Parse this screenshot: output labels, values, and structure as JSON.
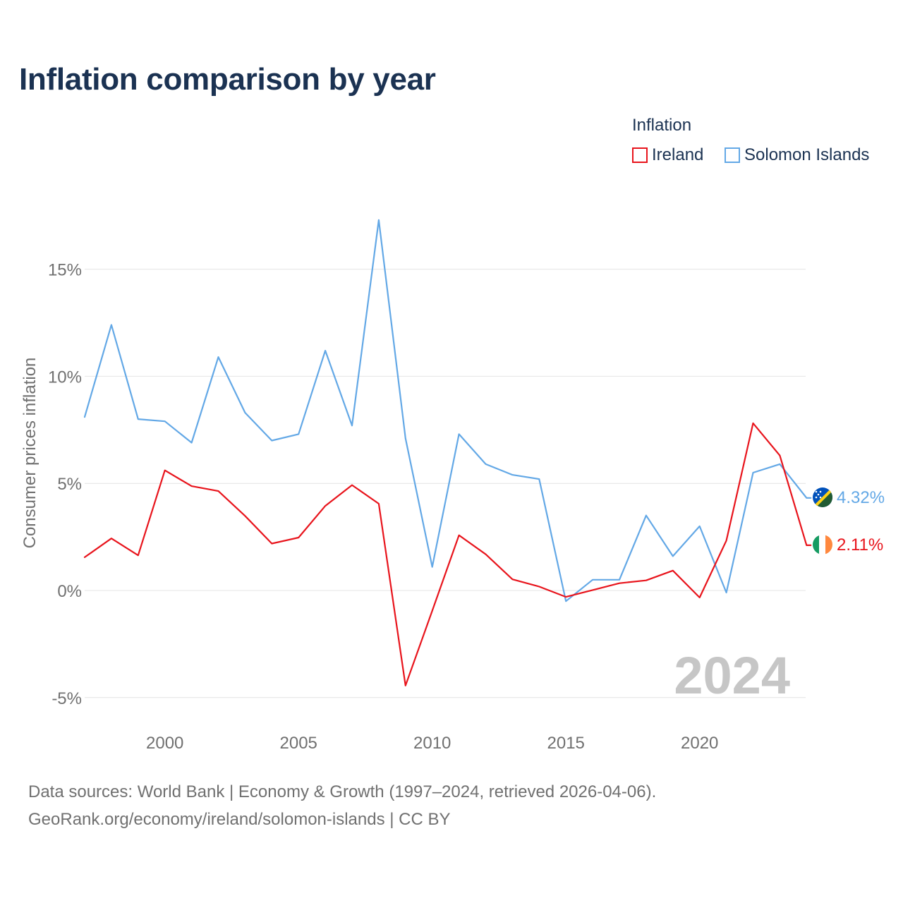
{
  "title": "Inflation comparison by year",
  "legend": {
    "title": "Inflation",
    "items": [
      {
        "label": "Ireland",
        "color": "#e8141c"
      },
      {
        "label": "Solomon Islands",
        "color": "#63a8e6"
      }
    ]
  },
  "chart_data": {
    "type": "line",
    "title": "Inflation comparison by year",
    "xlabel": "",
    "ylabel": "Consumer prices inflation",
    "xlim": [
      1997,
      2024
    ],
    "ylim": [
      -5,
      17.5
    ],
    "x_ticks": [
      2000,
      2005,
      2010,
      2015,
      2020
    ],
    "y_ticks": [
      {
        "value": 15,
        "label": "15%"
      },
      {
        "value": 10,
        "label": "10%"
      },
      {
        "value": 5,
        "label": "5%"
      },
      {
        "value": 0,
        "label": "0%"
      },
      {
        "value": -5,
        "label": "-5%"
      }
    ],
    "grid": true,
    "watermark_year": "2024",
    "x": [
      1997,
      1998,
      1999,
      2000,
      2001,
      2002,
      2003,
      2004,
      2005,
      2006,
      2007,
      2008,
      2009,
      2010,
      2011,
      2012,
      2013,
      2014,
      2015,
      2016,
      2017,
      2018,
      2019,
      2020,
      2021,
      2022,
      2023,
      2024
    ],
    "series": [
      {
        "name": "Ireland",
        "color": "#e8141c",
        "values": [
          1.55,
          2.43,
          1.64,
          5.61,
          4.87,
          4.64,
          3.48,
          2.19,
          2.47,
          3.95,
          4.92,
          4.05,
          -4.44,
          -0.95,
          2.58,
          1.69,
          0.52,
          0.18,
          -0.3,
          0.02,
          0.34,
          0.47,
          0.93,
          -0.33,
          2.33,
          7.81,
          6.3,
          2.11
        ],
        "end_label": "2.11%"
      },
      {
        "name": "Solomon Islands",
        "color": "#63a8e6",
        "values": [
          8.1,
          12.4,
          8.0,
          7.9,
          6.9,
          10.9,
          8.3,
          7.0,
          7.3,
          11.2,
          7.7,
          17.3,
          7.1,
          1.1,
          7.3,
          5.9,
          5.4,
          5.2,
          -0.5,
          0.5,
          0.5,
          3.5,
          1.6,
          3.0,
          -0.1,
          5.5,
          5.9,
          4.32
        ],
        "end_label": "4.32%"
      }
    ]
  },
  "source": {
    "line1": "Data sources: World Bank | Economy & Growth (1997–2024, retrieved 2026-04-06).",
    "line2": "GeoRank.org/economy/ireland/solomon-islands | CC BY"
  }
}
